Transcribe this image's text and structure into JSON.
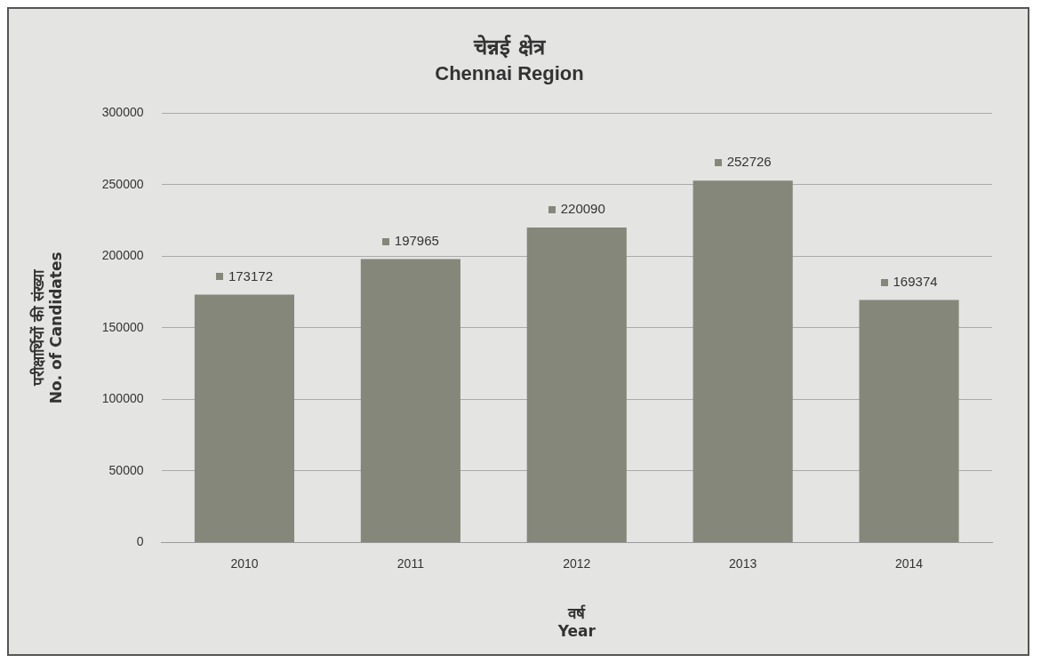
{
  "chart_data": {
    "type": "bar",
    "title": "चेन्नई क्षेत्र",
    "subtitle": "Chennai Region",
    "xlabel": "वर्ष\nYear",
    "ylabel": "परीक्षार्थियों की संख्या\nNo. of Candidates",
    "categories": [
      "2010",
      "2011",
      "2012",
      "2013",
      "2014"
    ],
    "values": [
      173172,
      197965,
      220090,
      252726,
      169374
    ],
    "color": "#85877a",
    "ylim": [
      0,
      300000
    ],
    "yticks": [
      0,
      50000,
      100000,
      150000,
      200000,
      250000,
      300000
    ],
    "grid": "y",
    "data_labels": true,
    "legend": false
  }
}
